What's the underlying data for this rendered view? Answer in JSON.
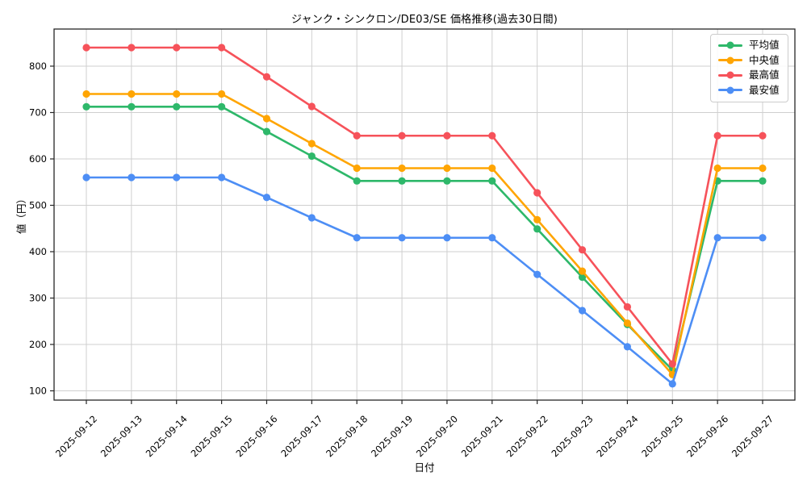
{
  "chart_data": {
    "type": "line",
    "title": "ジャンク・シンクロン/DE03/SE 価格推移(過去30日間)",
    "xlabel": "日付",
    "ylabel": "値（円）",
    "x": [
      "2025-09-12",
      "2025-09-13",
      "2025-09-14",
      "2025-09-15",
      "2025-09-16",
      "2025-09-17",
      "2025-09-18",
      "2025-09-19",
      "2025-09-20",
      "2025-09-21",
      "2025-09-22",
      "2025-09-23",
      "2025-09-24",
      "2025-09-25",
      "2025-09-26",
      "2025-09-27"
    ],
    "series": [
      {
        "key": "average",
        "name": "平均値",
        "color": "#2eb86a",
        "values": [
          712.5,
          712.5,
          712.5,
          712.5,
          659,
          606,
          552.5,
          552.5,
          552.5,
          552.5,
          449,
          345,
          243,
          145,
          552.5,
          552.5
        ]
      },
      {
        "key": "median",
        "name": "中央値",
        "color": "#ffa502",
        "values": [
          740,
          740,
          740,
          740,
          687,
          633,
          580,
          580,
          580,
          580,
          469,
          358,
          246,
          135,
          580,
          580
        ]
      },
      {
        "key": "max",
        "name": "最高値",
        "color": "#f6525a",
        "values": [
          840,
          840,
          840,
          840,
          777,
          713,
          650,
          650,
          650,
          650,
          527,
          404,
          281,
          158,
          650,
          650
        ]
      },
      {
        "key": "min",
        "name": "最安値",
        "color": "#4d8ef5",
        "values": [
          560,
          560,
          560,
          560,
          517,
          473,
          430,
          430,
          430,
          430,
          351,
          273,
          195,
          115,
          430,
          430
        ]
      }
    ],
    "ylim": [
      80,
      880
    ],
    "yticks": [
      100,
      200,
      300,
      400,
      500,
      600,
      700,
      800
    ],
    "grid": true,
    "legend_position": "upper right",
    "grid_color": "#cfcfcf",
    "spine_color": "#262626"
  }
}
